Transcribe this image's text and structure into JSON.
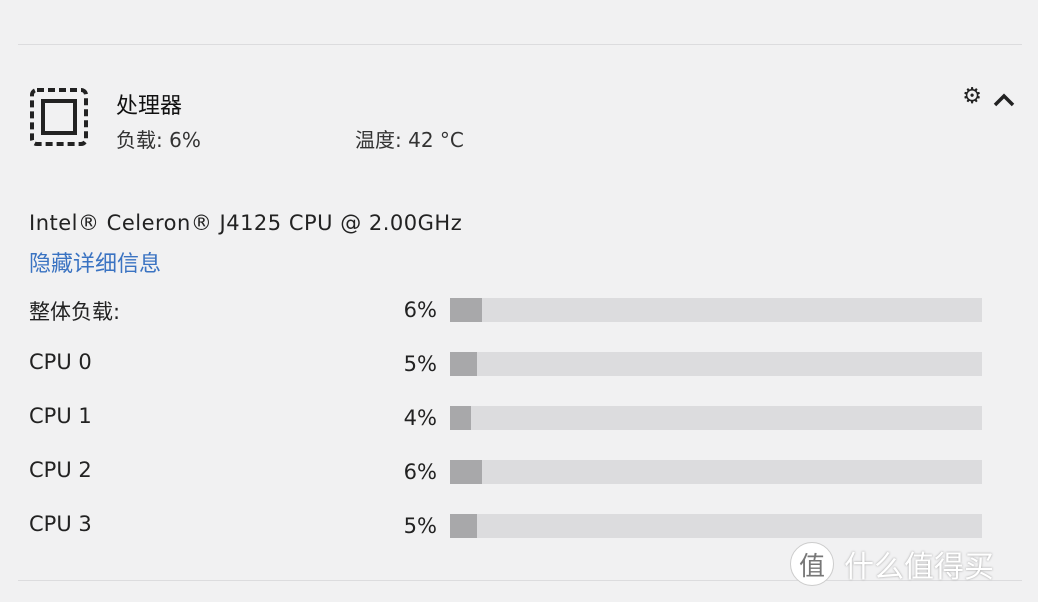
{
  "header": {
    "title": "处理器",
    "load": "负载: 6%",
    "temperature": "温度: 42 °C"
  },
  "icons": [
    "cpu-icon",
    "gear-icon",
    "chevron-up-icon"
  ],
  "details": {
    "model": "Intel® Celeron® J4125 CPU @ 2.00GHz",
    "toggle_link": "隐藏详细信息"
  },
  "rows": [
    {
      "label": "整体负载:",
      "percent_text": "6%",
      "value": 6
    },
    {
      "label": "CPU 0",
      "percent_text": "5%",
      "value": 5
    },
    {
      "label": "CPU 1",
      "percent_text": "4%",
      "value": 4
    },
    {
      "label": "CPU 2",
      "percent_text": "6%",
      "value": 6
    },
    {
      "label": "CPU 3",
      "percent_text": "5%",
      "value": 5
    }
  ],
  "colors": {
    "link": "#3a73c2",
    "bar_track": "#dcdcde",
    "bar_fill": "#a8a8aa"
  },
  "watermark": {
    "badge": "值",
    "text": "什么值得买"
  }
}
